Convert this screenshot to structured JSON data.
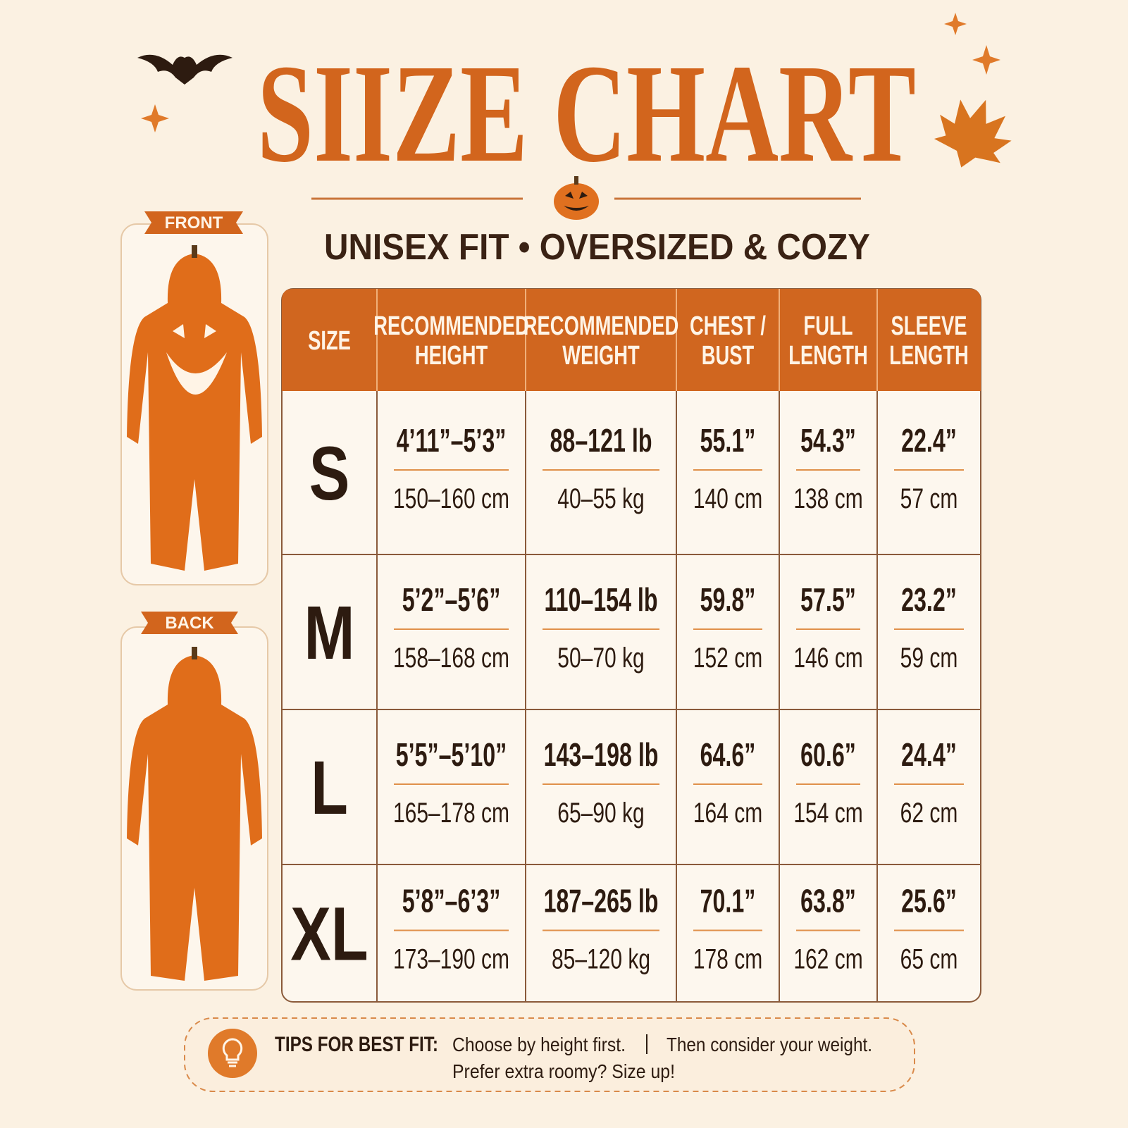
{
  "header": {
    "title": "SIIZE CHART",
    "subtitle": "UNISEX FIT • OVERSIZED & COZY"
  },
  "views": {
    "front": "FRONT",
    "back": "BACK"
  },
  "table": {
    "header": [
      [
        "SIZE"
      ],
      [
        "RECOMMENDED",
        "HEIGHT"
      ],
      [
        "RECOMMENDED",
        "WEIGHT"
      ],
      [
        "CHEST /",
        "BUST"
      ],
      [
        "FULL",
        "LENGTH"
      ],
      [
        "SLEEVE",
        "LENGTH"
      ]
    ],
    "rows": [
      {
        "size": "S",
        "cells": [
          {
            "imperial": "4’11”–5’3”",
            "metric": "150–160 cm"
          },
          {
            "imperial": "88–121 lb",
            "metric": "40–55 kg"
          },
          {
            "imperial": "55.1”",
            "metric": "140 cm"
          },
          {
            "imperial": "54.3”",
            "metric": "138 cm"
          },
          {
            "imperial": "22.4”",
            "metric": "57 cm"
          }
        ]
      },
      {
        "size": "M",
        "cells": [
          {
            "imperial": "5’2”–5’6”",
            "metric": "158–168 cm"
          },
          {
            "imperial": "110–154 lb",
            "metric": "50–70 kg"
          },
          {
            "imperial": "59.8”",
            "metric": "152 cm"
          },
          {
            "imperial": "57.5”",
            "metric": "146 cm"
          },
          {
            "imperial": "23.2”",
            "metric": "59 cm"
          }
        ]
      },
      {
        "size": "L",
        "cells": [
          {
            "imperial": "5’5”–5’10”",
            "metric": "165–178 cm"
          },
          {
            "imperial": "143–198 lb",
            "metric": "65–90 kg"
          },
          {
            "imperial": "64.6”",
            "metric": "164 cm"
          },
          {
            "imperial": "60.6”",
            "metric": "154 cm"
          },
          {
            "imperial": "24.4”",
            "metric": "62 cm"
          }
        ]
      },
      {
        "size": "XL",
        "cells": [
          {
            "imperial": "5’8”–6’3”",
            "metric": "173–190 cm"
          },
          {
            "imperial": "187–265 lb",
            "metric": "85–120 kg"
          },
          {
            "imperial": "70.1”",
            "metric": "178 cm"
          },
          {
            "imperial": "63.8”",
            "metric": "162 cm"
          },
          {
            "imperial": "25.6”",
            "metric": "65 cm"
          }
        ]
      }
    ]
  },
  "tips": {
    "label": "TIPS FOR BEST FIT:",
    "lines": [
      "Choose by height first.",
      "Then consider your weight.",
      "Prefer extra roomy? Size up!"
    ]
  }
}
